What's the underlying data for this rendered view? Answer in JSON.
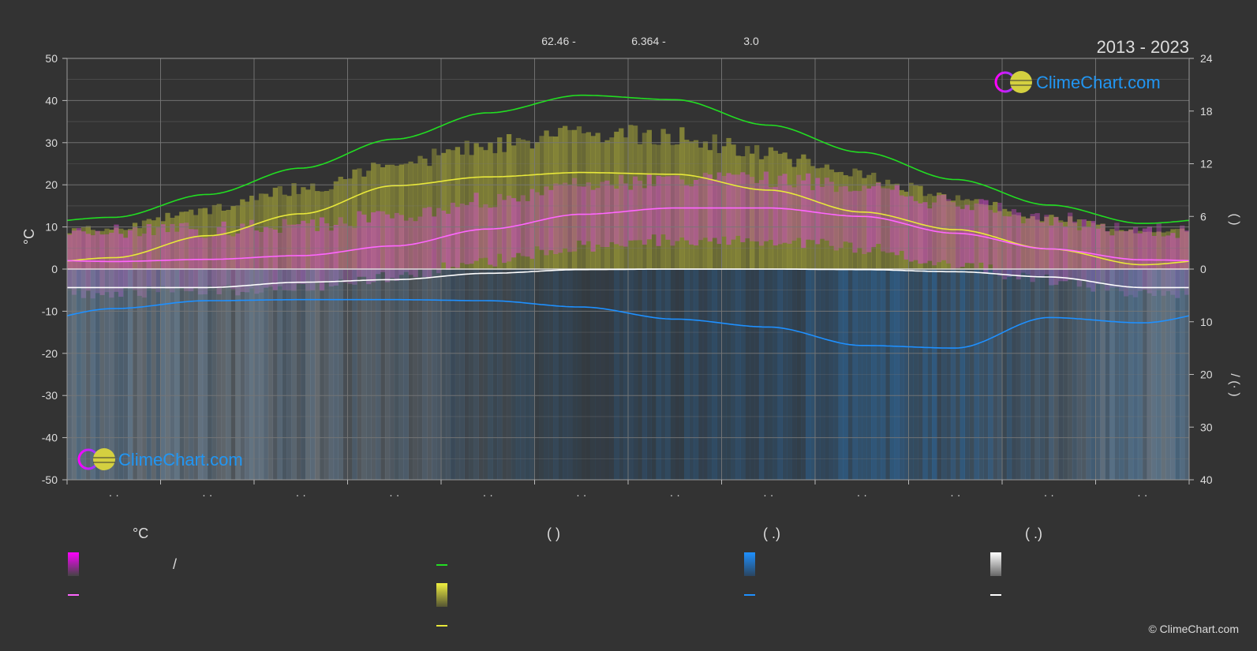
{
  "header": {
    "period": "2013 - 2023",
    "coords": [
      "62.46 -",
      "6.364 -",
      "3.0"
    ]
  },
  "brand": {
    "name": "ClimeChart.com",
    "copyright": "© ClimeChart.com"
  },
  "colors": {
    "background": "#333333",
    "daylight": "#22dd22",
    "sunshine_line": "#e8e83a",
    "temp_line": "#ff66ff",
    "precip_line": "#1e90ff",
    "snow_line": "#ffffff",
    "grid": "#777777"
  },
  "chart_data": {
    "type": "line",
    "x": [
      1,
      2,
      3,
      4,
      5,
      6,
      7,
      8,
      9,
      10,
      11,
      12
    ],
    "x_tick_labels": [
      "· ·",
      "· ·",
      "· ·",
      "· ·",
      "· ·",
      "· ·",
      "· ·",
      "· ·",
      "· ·",
      "· ·",
      "· ·",
      "· ·"
    ],
    "y_left": {
      "label": "°C",
      "range": [
        -50,
        50
      ],
      "ticks": [
        50,
        40,
        30,
        20,
        10,
        0,
        -10,
        -20,
        -30,
        -40,
        -50
      ]
    },
    "y_right_upper": {
      "range": [
        0,
        24
      ],
      "ticks": [
        24,
        18,
        12,
        6,
        0
      ],
      "label": "(  )"
    },
    "y_right_lower": {
      "range": [
        0,
        40
      ],
      "ticks": [
        10,
        20,
        30,
        40
      ],
      "label": "/ (· )"
    },
    "grid": true,
    "series": [
      {
        "key": "daylight",
        "axis": "right_upper_hours",
        "values": [
          5.9,
          8.5,
          11.5,
          14.8,
          17.8,
          19.8,
          19.3,
          16.4,
          13.3,
          10.2,
          7.3,
          5.2
        ]
      },
      {
        "key": "sunshine",
        "axis": "right_upper_hours",
        "values": [
          1.3,
          3.8,
          6.3,
          9.5,
          10.5,
          11.0,
          10.8,
          9.0,
          6.5,
          4.5,
          2.3,
          0.5
        ]
      },
      {
        "key": "temperature",
        "axis": "left_celsius",
        "values": [
          1.8,
          2.3,
          3.2,
          5.5,
          9.5,
          13.0,
          14.5,
          14.5,
          12.5,
          8.5,
          4.8,
          2.2
        ]
      },
      {
        "key": "snowfall",
        "axis": "right_lower_mm",
        "values": [
          3.5,
          3.5,
          2.5,
          2.0,
          0.8,
          0.1,
          0.0,
          0.0,
          0.1,
          0.5,
          1.5,
          3.5
        ]
      },
      {
        "key": "precipitation",
        "axis": "right_lower_mm",
        "values": [
          7.5,
          6.0,
          5.8,
          5.8,
          6.0,
          7.2,
          9.5,
          11.0,
          14.5,
          15.0,
          9.2,
          10.2
        ]
      }
    ]
  },
  "legend": {
    "columns": [
      {
        "title": "°C",
        "items": [
          {
            "swatch": "temp-band",
            "label": "/"
          },
          {
            "swatch": "temp-line",
            "label": ""
          }
        ]
      },
      {
        "title": "(          )",
        "items": [
          {
            "swatch": "daylight-line",
            "label": ""
          },
          {
            "swatch": "sunshine-band",
            "label": ""
          },
          {
            "swatch": "sunshine-line",
            "label": ""
          }
        ]
      },
      {
        "title": "(   .)",
        "items": [
          {
            "swatch": "precip-band",
            "label": ""
          },
          {
            "swatch": "precip-line",
            "label": ""
          }
        ]
      },
      {
        "title": "(   .)",
        "items": [
          {
            "swatch": "snow-band",
            "label": ""
          },
          {
            "swatch": "snow-line",
            "label": ""
          }
        ]
      }
    ]
  }
}
